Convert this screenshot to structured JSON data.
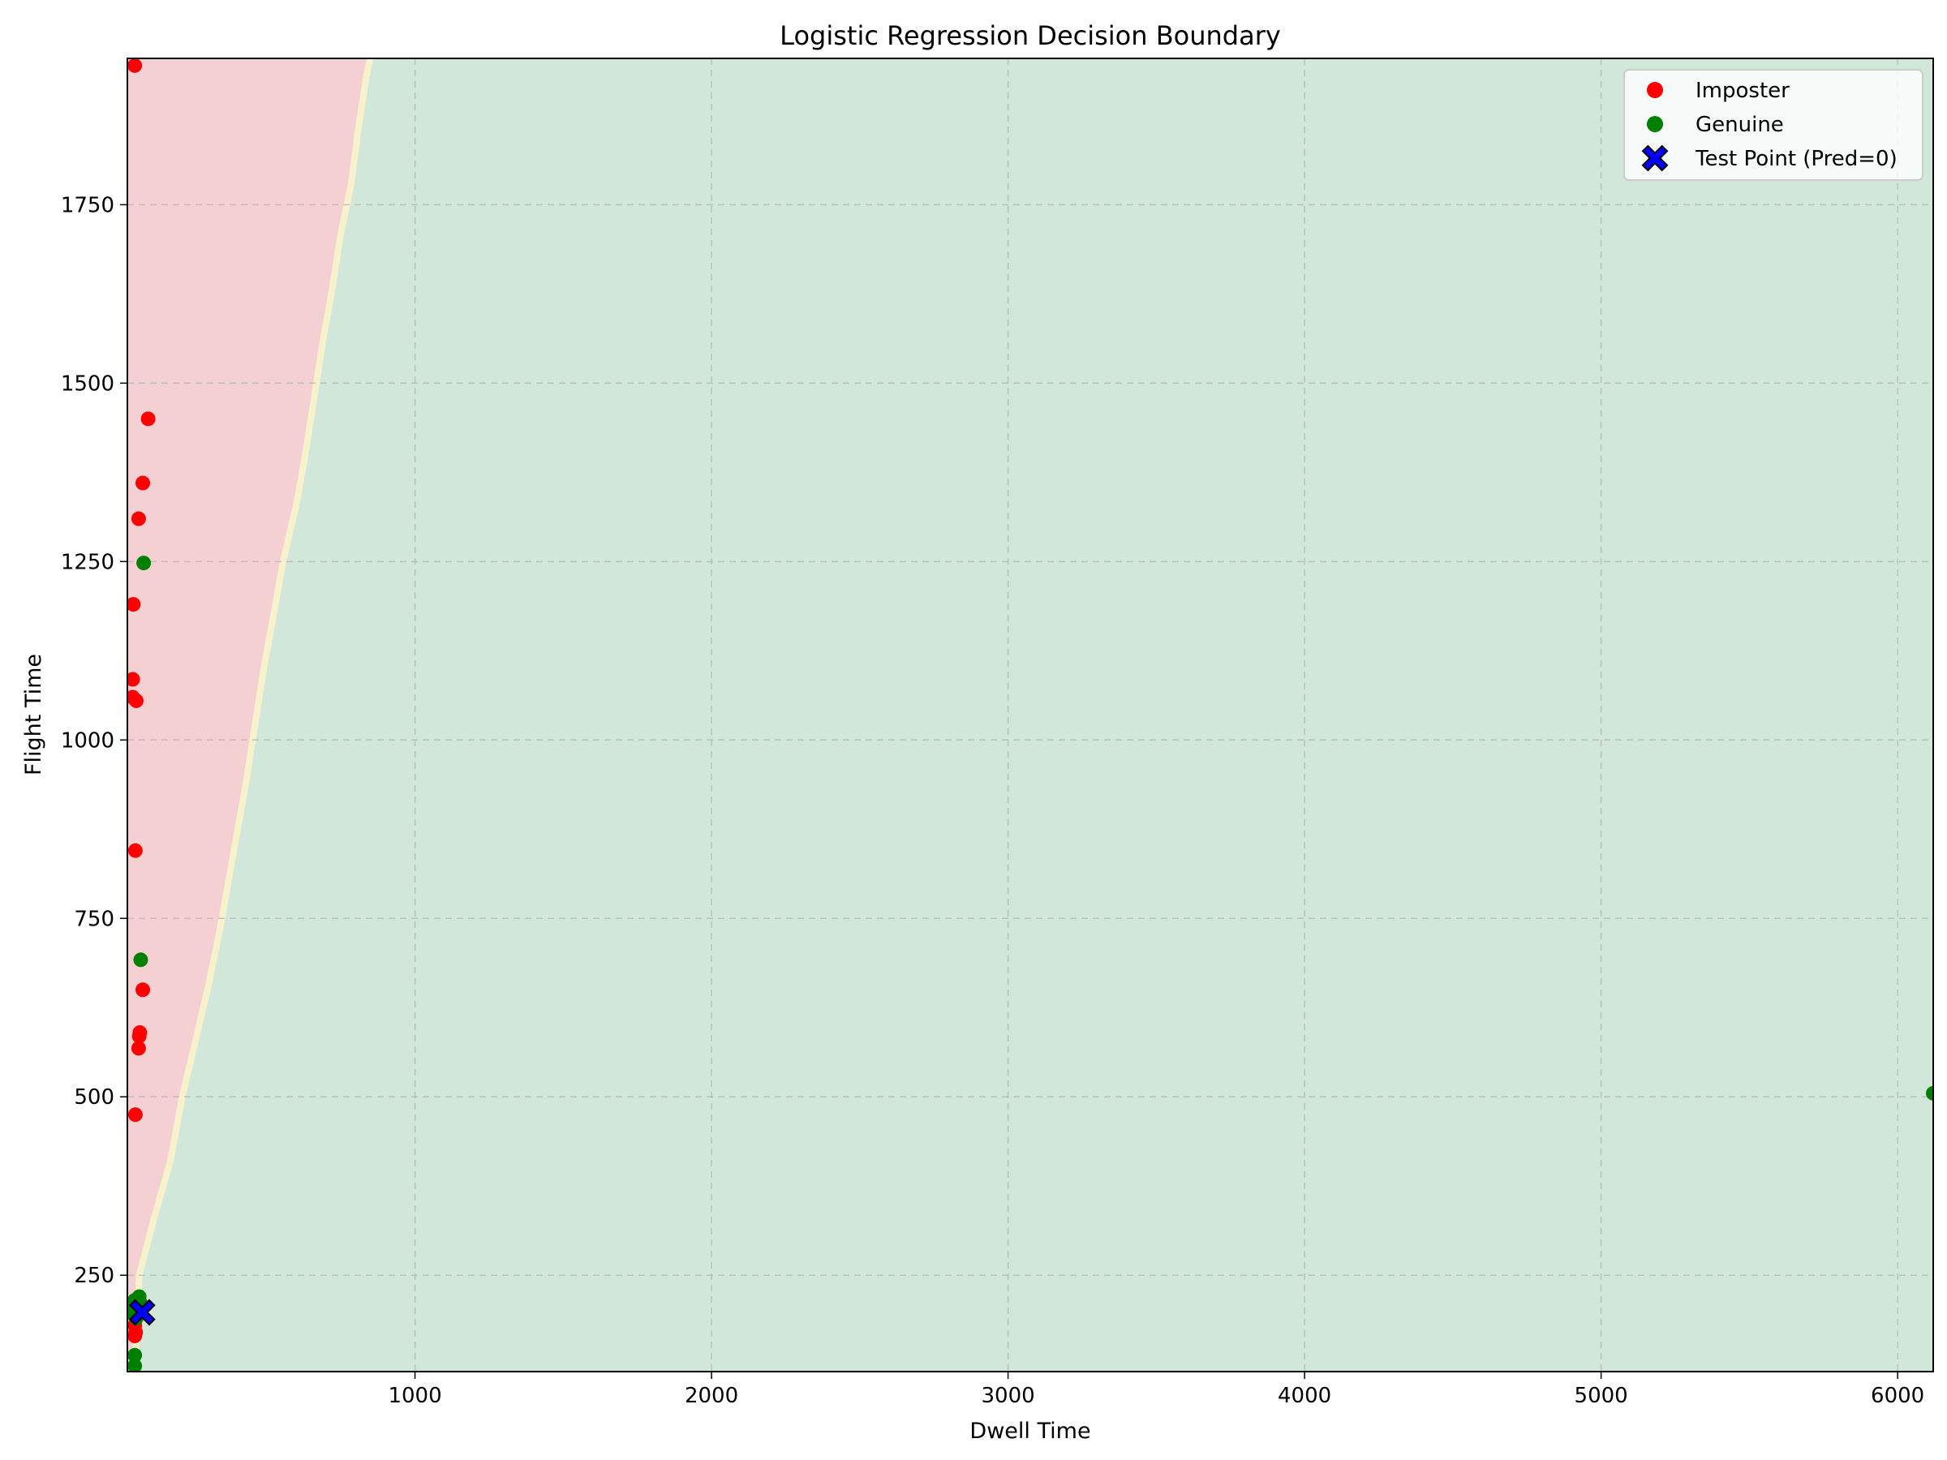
{
  "chart_data": {
    "type": "scatter",
    "title": "Logistic Regression Decision Boundary",
    "xlabel": "Dwell Time",
    "ylabel": "Flight Time",
    "xlim": [
      30,
      6120
    ],
    "ylim": [
      115,
      1955
    ],
    "x_ticks": [
      1000,
      2000,
      3000,
      4000,
      5000,
      6000
    ],
    "y_ticks": [
      250,
      500,
      750,
      1000,
      1250,
      1500,
      1750
    ],
    "grid": true,
    "legend_position": "top-right",
    "colors": {
      "imposter": "#ff0000",
      "genuine": "#008000",
      "test_point": "#0000ff",
      "region_imposter": "#f5d0d3",
      "region_genuine": "#d0e7da",
      "boundary": "#f7f2cc"
    },
    "decision_boundary": {
      "description_values": "boundary dwell time per flight time",
      "points": [
        [
          55,
          115
        ],
        [
          70,
          250
        ],
        [
          120,
          330
        ],
        [
          175,
          410
        ],
        [
          215,
          500
        ],
        [
          255,
          570
        ],
        [
          300,
          650
        ],
        [
          340,
          730
        ],
        [
          370,
          800
        ],
        [
          400,
          870
        ],
        [
          430,
          940
        ],
        [
          460,
          1020
        ],
        [
          490,
          1100
        ],
        [
          525,
          1180
        ],
        [
          555,
          1250
        ],
        [
          600,
          1330
        ],
        [
          630,
          1400
        ],
        [
          660,
          1480
        ],
        [
          690,
          1560
        ],
        [
          720,
          1630
        ],
        [
          750,
          1710
        ],
        [
          785,
          1780
        ],
        [
          810,
          1860
        ],
        [
          840,
          1940
        ],
        [
          850,
          1955
        ]
      ]
    },
    "series": [
      {
        "name": "Imposter",
        "points": [
          [
            55,
            1945
          ],
          [
            50,
            1190
          ],
          [
            48,
            1085
          ],
          [
            48,
            1060
          ],
          [
            60,
            1055
          ],
          [
            57,
            845
          ],
          [
            100,
            1450
          ],
          [
            82,
            1360
          ],
          [
            68,
            1310
          ],
          [
            82,
            650
          ],
          [
            72,
            590
          ],
          [
            70,
            585
          ],
          [
            68,
            568
          ],
          [
            57,
            475
          ],
          [
            55,
            195
          ],
          [
            55,
            180
          ],
          [
            58,
            170
          ],
          [
            55,
            165
          ]
        ]
      },
      {
        "name": "Genuine",
        "points": [
          [
            85,
            1248
          ],
          [
            75,
            692
          ],
          [
            6120,
            505
          ],
          [
            70,
            220
          ],
          [
            55,
            215
          ],
          [
            75,
            210
          ],
          [
            45,
            200
          ],
          [
            52,
            195
          ],
          [
            60,
            190
          ],
          [
            55,
            138
          ],
          [
            55,
            123
          ],
          [
            50,
            200
          ]
        ]
      },
      {
        "name": "Test Point (Pred=0)",
        "points": [
          [
            80,
            198
          ]
        ]
      }
    ]
  }
}
